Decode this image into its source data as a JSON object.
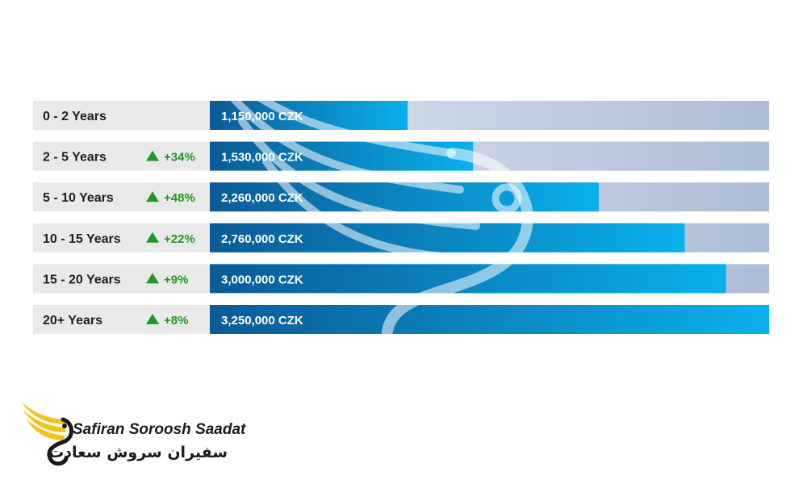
{
  "chart_data": {
    "type": "bar",
    "orientation": "horizontal",
    "categories": [
      "0 - 2 Years",
      "2 - 5 Years",
      "5 - 10 Years",
      "10 - 15 Years",
      "15 - 20 Years",
      "20+ Years"
    ],
    "values": [
      1150000,
      1530000,
      2260000,
      2760000,
      3000000,
      3250000
    ],
    "value_labels": [
      "1,150,000 CZK",
      "1,530,000 CZK",
      "2,260,000 CZK",
      "2,760,000 CZK",
      "3,000,000 CZK",
      "3,250,000 CZK"
    ],
    "growth": [
      "",
      "+34%",
      "+48%",
      "+22%",
      "+9%",
      "+8%"
    ],
    "xlim": [
      0,
      3250000
    ],
    "grid": false,
    "colors": {
      "bar_start": "#0a5b96",
      "bar_end": "#0ab0ec",
      "track_start": "#dde6f1",
      "track_end": "#adbcd6",
      "label_bg": "#e9e9e9",
      "growth": "#1f9a1f"
    }
  },
  "logo": {
    "latin": "Safiran Soroosh Saadat",
    "farsi": "سفیران سروش سعادت",
    "wing_colors": [
      "#f3c21b",
      "#1b1b1b"
    ]
  }
}
